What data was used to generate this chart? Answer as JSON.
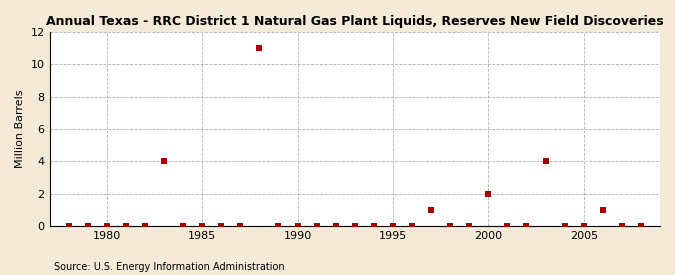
{
  "title": "Annual Texas - RRC District 1 Natural Gas Plant Liquids, Reserves New Field Discoveries",
  "ylabel": "Million Barrels",
  "source": "Source: U.S. Energy Information Administration",
  "background_color": "#f5ead8",
  "plot_background_color": "#ffffff",
  "marker_color": "#aa0000",
  "marker_size": 16,
  "xlim": [
    1977,
    2009
  ],
  "ylim": [
    0,
    12
  ],
  "yticks": [
    0,
    2,
    4,
    6,
    8,
    10,
    12
  ],
  "xticks": [
    1980,
    1985,
    1990,
    1995,
    2000,
    2005
  ],
  "data_x": [
    1978,
    1979,
    1980,
    1981,
    1982,
    1983,
    1984,
    1985,
    1986,
    1987,
    1988,
    1989,
    1990,
    1991,
    1992,
    1993,
    1994,
    1995,
    1996,
    1997,
    1998,
    1999,
    2000,
    2001,
    2002,
    2003,
    2004,
    2005,
    2006,
    2007,
    2008
  ],
  "data_y": [
    0,
    0,
    0,
    0,
    0,
    4,
    0,
    0,
    0,
    0,
    11,
    0,
    0,
    0,
    0,
    0,
    0,
    0,
    0,
    1,
    0,
    0,
    2,
    0,
    0,
    4,
    0,
    0,
    1,
    0,
    0
  ]
}
